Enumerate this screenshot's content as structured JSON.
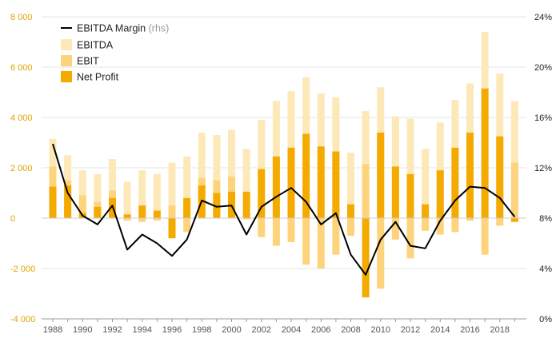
{
  "chart_data": {
    "type": "bar",
    "title": "",
    "x": [
      1988,
      1989,
      1990,
      1991,
      1992,
      1993,
      1994,
      1995,
      1996,
      1997,
      1998,
      1999,
      2000,
      2001,
      2002,
      2003,
      2004,
      2005,
      2006,
      2007,
      2008,
      2009,
      2010,
      2011,
      2012,
      2013,
      2014,
      2015,
      2016,
      2017,
      2018,
      2019
    ],
    "x_tick_labels": [
      "1988",
      "1990",
      "1992",
      "1994",
      "1996",
      "1998",
      "2000",
      "2002",
      "2004",
      "2006",
      "2008",
      "2010",
      "2012",
      "2014",
      "2016",
      "2018"
    ],
    "y_left": {
      "range": [
        -4000,
        8000
      ],
      "ticks": [
        -4000,
        -2000,
        0,
        2000,
        4000,
        6000,
        8000
      ],
      "tick_labels": [
        "-4 000",
        "-2 000",
        "0",
        "2 000",
        "4 000",
        "6 000",
        "8 000"
      ],
      "color": "#e0a300"
    },
    "y_right": {
      "range": [
        0,
        24
      ],
      "ticks": [
        0,
        4,
        8,
        12,
        16,
        20,
        24
      ],
      "tick_labels": [
        "0%",
        "4%",
        "8%",
        "12%",
        "16%",
        "20%",
        "24%"
      ],
      "unit": "%"
    },
    "grid": true,
    "legend_position": "top-left",
    "series": [
      {
        "name": "EBITDA Margin",
        "name_suffix": "(rhs)",
        "type": "line",
        "axis": "right",
        "color": "#000000",
        "values": [
          13.9,
          10.0,
          8.2,
          7.5,
          9.0,
          5.5,
          6.7,
          6.0,
          5.0,
          6.3,
          9.4,
          8.9,
          9.0,
          6.7,
          8.9,
          9.7,
          10.4,
          9.3,
          7.5,
          8.4,
          5.1,
          3.5,
          6.3,
          7.7,
          5.8,
          5.6,
          7.8,
          9.4,
          10.5,
          10.4,
          9.6,
          8.1
        ]
      },
      {
        "name": "EBITDA",
        "type": "bar",
        "axis": "left",
        "color": "#fde8b8",
        "values": [
          3150,
          2500,
          1900,
          1750,
          2350,
          1450,
          1900,
          1750,
          2200,
          2450,
          3400,
          3300,
          3500,
          2750,
          3900,
          4650,
          5050,
          5600,
          4950,
          4800,
          2600,
          4250,
          5200,
          4050,
          3950,
          2750,
          3800,
          4700,
          5350,
          7400,
          5750,
          4650
        ]
      },
      {
        "name": "EBIT",
        "type": "bar",
        "axis": "left",
        "color": "#fdd47b",
        "values": [
          2050,
          1500,
          900,
          650,
          1100,
          -100,
          -150,
          -100,
          500,
          -550,
          1600,
          1500,
          1650,
          -50,
          -750,
          -1100,
          -950,
          -1850,
          -2000,
          -1450,
          -700,
          2150,
          -2800,
          -850,
          -1600,
          -500,
          -650,
          -550,
          -100,
          -1450,
          -300,
          2200
        ]
      },
      {
        "name": "Net Profit",
        "type": "bar",
        "axis": "left",
        "color": "#f5aa00",
        "values": [
          1250,
          1300,
          200,
          450,
          800,
          150,
          500,
          300,
          -800,
          800,
          1300,
          1000,
          1050,
          1050,
          1950,
          2450,
          2800,
          3350,
          2850,
          2650,
          550,
          -3150,
          3400,
          2050,
          1750,
          550,
          1900,
          2800,
          3400,
          5150,
          3250,
          -150
        ]
      }
    ]
  }
}
